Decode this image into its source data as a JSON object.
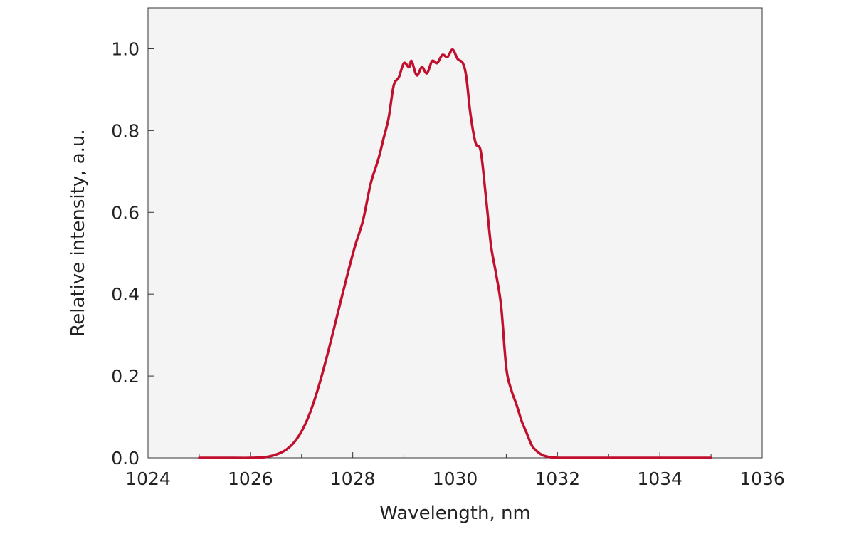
{
  "chart_data": {
    "type": "line",
    "title": "",
    "xlabel": "Wavelength, nm",
    "ylabel": "Relative intensity, a.u.",
    "xlim": [
      1024,
      1036
    ],
    "ylim": [
      0,
      1.1
    ],
    "x_ticks": [
      1024,
      1026,
      1028,
      1030,
      1032,
      1034,
      1036
    ],
    "x_tick_labels": [
      "1024",
      "1026",
      "1028",
      "1030",
      "1032",
      "1034",
      "1036"
    ],
    "y_ticks": [
      0,
      0.2,
      0.4,
      0.6,
      0.8,
      1.0
    ],
    "y_tick_labels": [
      "0.0",
      "0.2",
      "0.4",
      "0.6",
      "0.8",
      "1.0"
    ],
    "grid": false,
    "legend": false,
    "background_color": "#f4f4f4",
    "series": [
      {
        "color": "#c0102e",
        "x": [
          1025.0,
          1025.5,
          1026.0,
          1026.3,
          1026.5,
          1026.7,
          1026.9,
          1027.1,
          1027.3,
          1027.5,
          1027.7,
          1027.9,
          1028.05,
          1028.2,
          1028.35,
          1028.5,
          1028.6,
          1028.7,
          1028.8,
          1028.9,
          1029.0,
          1029.1,
          1029.15,
          1029.25,
          1029.35,
          1029.45,
          1029.55,
          1029.65,
          1029.75,
          1029.85,
          1029.95,
          1030.05,
          1030.15,
          1030.22,
          1030.3,
          1030.4,
          1030.5,
          1030.6,
          1030.7,
          1030.8,
          1030.9,
          1031.0,
          1031.1,
          1031.2,
          1031.3,
          1031.4,
          1031.5,
          1031.6,
          1031.7,
          1031.8,
          1031.9,
          1032.0,
          1032.2,
          1032.4,
          1032.6,
          1032.8,
          1033.0,
          1033.3,
          1033.6,
          1034.0,
          1034.5,
          1035.0
        ],
        "y": [
          0.0,
          0.0,
          0.0,
          0.002,
          0.008,
          0.02,
          0.045,
          0.09,
          0.16,
          0.25,
          0.35,
          0.45,
          0.52,
          0.58,
          0.67,
          0.73,
          0.78,
          0.83,
          0.91,
          0.93,
          0.965,
          0.955,
          0.97,
          0.935,
          0.955,
          0.94,
          0.97,
          0.965,
          0.985,
          0.98,
          0.998,
          0.975,
          0.965,
          0.93,
          0.84,
          0.77,
          0.75,
          0.64,
          0.52,
          0.45,
          0.37,
          0.22,
          0.165,
          0.13,
          0.09,
          0.06,
          0.03,
          0.016,
          0.007,
          0.003,
          0.001,
          0.0,
          0.0,
          0.0,
          0.0,
          0.0,
          0.0,
          0.0,
          0.0,
          0.0,
          0.0,
          0.0
        ]
      }
    ]
  }
}
